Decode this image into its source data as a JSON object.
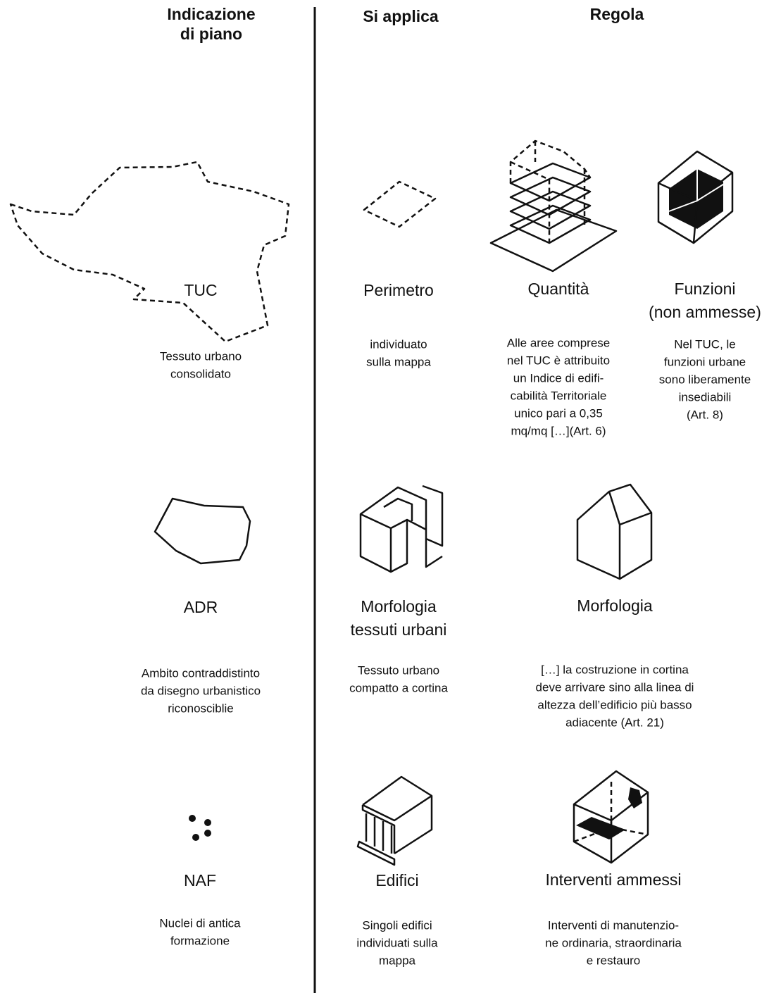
{
  "columns": [
    {
      "title": [
        "Indicazione",
        "di piano"
      ]
    },
    {
      "title": [
        "Si applica"
      ]
    },
    {
      "title": [
        "Regola"
      ]
    }
  ],
  "rows": [
    {
      "indicator": {
        "label": [
          "TUC"
        ],
        "description": [
          "Tessuto urbano",
          "consolidato"
        ]
      },
      "applies": {
        "label": [
          "Perimetro"
        ],
        "description": [
          "individuato",
          "sulla mappa"
        ]
      },
      "rules": [
        {
          "label": [
            "Quantità"
          ],
          "description": [
            "Alle aree comprese",
            "nel TUC è attribuito",
            "un Indice di edifi-",
            "cabilità Territoriale",
            "unico pari a 0,35",
            "mq/mq […](Art. 6)"
          ]
        },
        {
          "label": [
            "Funzioni",
            "(non ammesse)"
          ],
          "description": [
            "Nel TUC, le",
            "funzioni urbane",
            "sono liberamente",
            "insediabili",
            "(Art. 8)"
          ]
        }
      ]
    },
    {
      "indicator": {
        "label": [
          "ADR"
        ],
        "description": [
          "Ambito contraddistinto",
          "da disegno urbanistico",
          "riconoscibli​e"
        ]
      },
      "applies": {
        "label": [
          "Morfologia",
          "tessuti urbani"
        ],
        "description": [
          "Tessuto urbano",
          "compatto a cortina"
        ]
      },
      "rules": [
        {
          "label": [
            "Morfologia"
          ],
          "description": [
            "[…] la costruzione in cortina",
            "deve arrivare sino alla linea di",
            "altezza dell’edificio più basso",
            "adiacente (Art. 21)"
          ]
        }
      ]
    },
    {
      "indicator": {
        "label": [
          "NAF"
        ],
        "description": [
          "Nuclei di antica",
          "formazione"
        ]
      },
      "applies": {
        "label": [
          "Edifici"
        ],
        "description": [
          "Singoli edifici",
          "individuati sulla",
          "mappa"
        ]
      },
      "rules": [
        {
          "label": [
            "Interventi ammessi"
          ],
          "description": [
            "Interventi di manutenzio-",
            "ne ordinaria, straordinaria",
            "e restauro"
          ]
        }
      ]
    }
  ]
}
